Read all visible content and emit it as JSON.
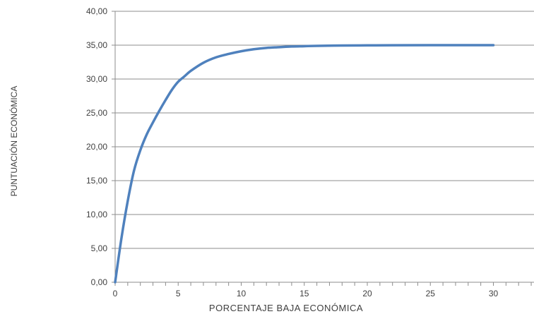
{
  "chart_data": {
    "type": "line",
    "title": "",
    "xlabel": "PORCENTAJE BAJA ECONÓMICA",
    "ylabel": "PUNTUACIÓN ECONÓMICA",
    "xlim": [
      0,
      30
    ],
    "ylim": [
      0,
      40
    ],
    "x_ticks": [
      "0",
      "5",
      "10",
      "15",
      "20",
      "25",
      "30"
    ],
    "y_ticks": [
      "0,00",
      "5,00",
      "10,00",
      "15,00",
      "20,00",
      "25,00",
      "30,00",
      "35,00",
      "40,00"
    ],
    "grid": "horizontal",
    "line_color": "#4F81BD",
    "series": [
      {
        "x": [
          0,
          0.5,
          1,
          1.5,
          2,
          2.5,
          3,
          3.5,
          4,
          4.5,
          5,
          5.5,
          6,
          7,
          8,
          9,
          10,
          11,
          12,
          13,
          14,
          15,
          16,
          18,
          20,
          22,
          25,
          30
        ],
        "values": [
          0,
          6.5,
          12,
          16.5,
          19.5,
          21.8,
          23.6,
          25.3,
          26.9,
          28.4,
          29.6,
          30.4,
          31.2,
          32.4,
          33.2,
          33.7,
          34.1,
          34.4,
          34.6,
          34.7,
          34.8,
          34.85,
          34.9,
          34.95,
          34.97,
          34.99,
          35.0,
          35.0
        ]
      }
    ]
  }
}
